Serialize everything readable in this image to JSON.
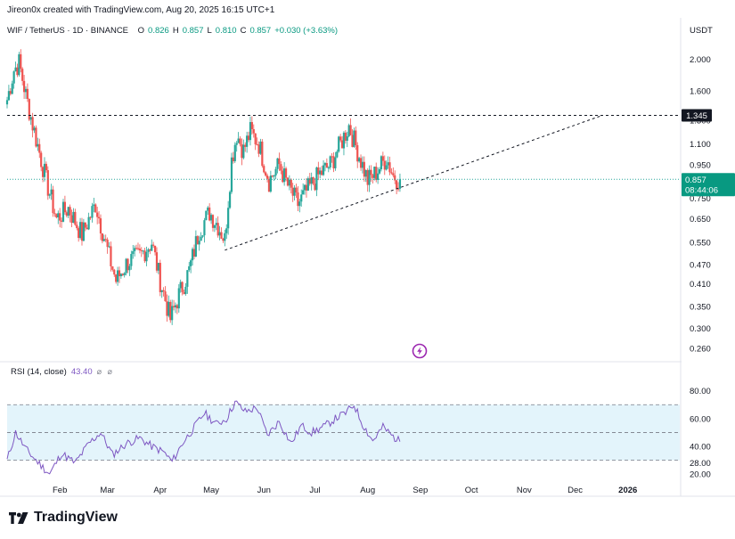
{
  "header": {
    "credit": "Jireon0x created with TradingView.com, Aug 20, 2025 16:15 UTC+1"
  },
  "symbol": {
    "name": "WIF / TetherUS · 1D · BINANCE",
    "o_label": "O",
    "o_value": "0.826",
    "h_label": "H",
    "h_value": "0.857",
    "l_label": "L",
    "l_value": "0.810",
    "c_label": "C",
    "c_value": "0.857",
    "change": "+0.030 (+3.63%)"
  },
  "currency": "USDT",
  "price_labels": {
    "resistance": "1.345",
    "last_price": "0.857",
    "countdown": "08:44:06"
  },
  "rsi": {
    "label": "RSI (14, close)",
    "value": "43.40",
    "icons": "⌀ ⌀"
  },
  "footer": {
    "brand": "TradingView"
  },
  "colors": {
    "up": "#26a69a",
    "down": "#ef5350",
    "rsi": "#7e57c2",
    "rsi_band": "#e3f4fb",
    "accent": "#089981"
  },
  "chart_data": [
    {
      "type": "candlestick",
      "y_scale": "log",
      "ylim": [
        0.24,
        2.3
      ],
      "y_ticks": [
        2.0,
        1.6,
        1.3,
        1.1,
        0.95,
        0.857,
        0.75,
        0.65,
        0.55,
        0.47,
        0.41,
        0.35,
        0.3,
        0.26
      ],
      "y_tick_labels": [
        "2.000",
        "1.600",
        "1.300",
        "1.100",
        "0.950",
        "",
        "0.750",
        "0.650",
        "0.550",
        "0.470",
        "0.410",
        "0.350",
        "0.300",
        "0.260"
      ],
      "x_ticks": [
        "Feb",
        "Mar",
        "Apr",
        "May",
        "Jun",
        "Jul",
        "Aug",
        "Sep",
        "Oct",
        "Nov",
        "Dec",
        "2026"
      ],
      "resistance_level": 1.345,
      "last_close": 0.857,
      "trendline": [
        {
          "date": "2025-05-09",
          "price": 0.52
        },
        {
          "date": "2025-12-17",
          "price": 1.345
        }
      ],
      "close_path": [
        {
          "date": "2025-01-01",
          "close": 1.5
        },
        {
          "date": "2025-01-05",
          "close": 1.85
        },
        {
          "date": "2025-01-08",
          "close": 1.95
        },
        {
          "date": "2025-01-12",
          "close": 1.55
        },
        {
          "date": "2025-01-17",
          "close": 1.2
        },
        {
          "date": "2025-01-24",
          "close": 0.85
        },
        {
          "date": "2025-01-30",
          "close": 0.65
        },
        {
          "date": "2025-02-06",
          "close": 0.7
        },
        {
          "date": "2025-02-14",
          "close": 0.58
        },
        {
          "date": "2025-02-22",
          "close": 0.72
        },
        {
          "date": "2025-03-01",
          "close": 0.52
        },
        {
          "date": "2025-03-06",
          "close": 0.42
        },
        {
          "date": "2025-03-13",
          "close": 0.48
        },
        {
          "date": "2025-03-20",
          "close": 0.5
        },
        {
          "date": "2025-03-27",
          "close": 0.55
        },
        {
          "date": "2025-04-01",
          "close": 0.42
        },
        {
          "date": "2025-04-07",
          "close": 0.32
        },
        {
          "date": "2025-04-12",
          "close": 0.38
        },
        {
          "date": "2025-04-18",
          "close": 0.45
        },
        {
          "date": "2025-04-24",
          "close": 0.6
        },
        {
          "date": "2025-04-30",
          "close": 0.68
        },
        {
          "date": "2025-05-05",
          "close": 0.62
        },
        {
          "date": "2025-05-09",
          "close": 0.56
        },
        {
          "date": "2025-05-13",
          "close": 0.98
        },
        {
          "date": "2025-05-16",
          "close": 1.18
        },
        {
          "date": "2025-05-20",
          "close": 1.05
        },
        {
          "date": "2025-05-24",
          "close": 1.2
        },
        {
          "date": "2025-05-29",
          "close": 1.1
        },
        {
          "date": "2025-06-04",
          "close": 0.85
        },
        {
          "date": "2025-06-10",
          "close": 0.95
        },
        {
          "date": "2025-06-15",
          "close": 0.82
        },
        {
          "date": "2025-06-21",
          "close": 0.72
        },
        {
          "date": "2025-06-27",
          "close": 0.8
        },
        {
          "date": "2025-07-03",
          "close": 0.88
        },
        {
          "date": "2025-07-10",
          "close": 0.95
        },
        {
          "date": "2025-07-16",
          "close": 1.1
        },
        {
          "date": "2025-07-21",
          "close": 1.25
        },
        {
          "date": "2025-07-26",
          "close": 1.05
        },
        {
          "date": "2025-08-01",
          "close": 0.85
        },
        {
          "date": "2025-08-06",
          "close": 0.9
        },
        {
          "date": "2025-08-12",
          "close": 1.0
        },
        {
          "date": "2025-08-16",
          "close": 0.88
        },
        {
          "date": "2025-08-20",
          "close": 0.857
        }
      ]
    },
    {
      "type": "line",
      "title": "RSI (14, close)",
      "ylim": [
        15,
        92
      ],
      "y_ticks": [
        80,
        60,
        40,
        28,
        20
      ],
      "y_tick_labels": [
        "80.00",
        "60.00",
        "40.00",
        "28.00",
        "20.00"
      ],
      "band": [
        30,
        70
      ],
      "points": [
        {
          "date": "2025-01-01",
          "value": 30
        },
        {
          "date": "2025-01-06",
          "value": 50
        },
        {
          "date": "2025-01-12",
          "value": 38
        },
        {
          "date": "2025-01-18",
          "value": 30
        },
        {
          "date": "2025-01-26",
          "value": 20
        },
        {
          "date": "2025-02-02",
          "value": 35
        },
        {
          "date": "2025-02-10",
          "value": 28
        },
        {
          "date": "2025-02-18",
          "value": 42
        },
        {
          "date": "2025-02-25",
          "value": 50
        },
        {
          "date": "2025-03-04",
          "value": 34
        },
        {
          "date": "2025-03-12",
          "value": 42
        },
        {
          "date": "2025-03-20",
          "value": 46
        },
        {
          "date": "2025-03-27",
          "value": 40
        },
        {
          "date": "2025-04-03",
          "value": 36
        },
        {
          "date": "2025-04-08",
          "value": 29
        },
        {
          "date": "2025-04-14",
          "value": 42
        },
        {
          "date": "2025-04-20",
          "value": 52
        },
        {
          "date": "2025-04-27",
          "value": 64
        },
        {
          "date": "2025-05-04",
          "value": 56
        },
        {
          "date": "2025-05-10",
          "value": 60
        },
        {
          "date": "2025-05-15",
          "value": 72
        },
        {
          "date": "2025-05-21",
          "value": 65
        },
        {
          "date": "2025-05-28",
          "value": 68
        },
        {
          "date": "2025-06-03",
          "value": 48
        },
        {
          "date": "2025-06-10",
          "value": 58
        },
        {
          "date": "2025-06-17",
          "value": 42
        },
        {
          "date": "2025-06-23",
          "value": 55
        },
        {
          "date": "2025-06-29",
          "value": 50
        },
        {
          "date": "2025-07-06",
          "value": 54
        },
        {
          "date": "2025-07-13",
          "value": 60
        },
        {
          "date": "2025-07-19",
          "value": 64
        },
        {
          "date": "2025-07-24",
          "value": 70
        },
        {
          "date": "2025-07-29",
          "value": 56
        },
        {
          "date": "2025-08-04",
          "value": 44
        },
        {
          "date": "2025-08-10",
          "value": 54
        },
        {
          "date": "2025-08-15",
          "value": 48
        },
        {
          "date": "2025-08-20",
          "value": 43.4
        }
      ]
    }
  ]
}
